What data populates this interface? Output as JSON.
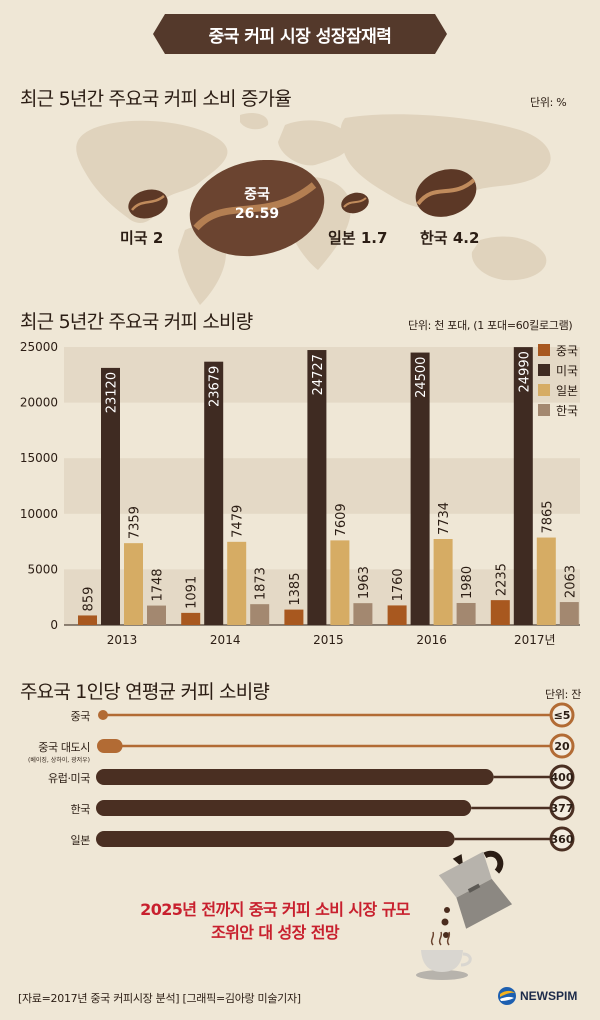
{
  "header": {
    "title": "중국 커피 시장 성장잠재력"
  },
  "growth": {
    "title": "최근 5년간 주요국 커피 소비 증가율",
    "unit": "단위: %",
    "items": [
      {
        "country": "미국",
        "value": "2"
      },
      {
        "country": "중국",
        "value": "26.59"
      },
      {
        "country": "일본",
        "value": "1.7"
      },
      {
        "country": "한국",
        "value": "4.2"
      }
    ]
  },
  "consumption": {
    "title": "최근 5년간 주요국 커피 소비량",
    "unit": "단위: 천 포대, (1 포대=60킬로그램)"
  },
  "chart_data": [
    {
      "type": "bar",
      "title": "최근 5년간 주요국 커피 소비량",
      "categories": [
        "2013",
        "2014",
        "2015",
        "2016",
        "2017년"
      ],
      "series": [
        {
          "name": "중국",
          "values": [
            859,
            1091,
            1385,
            1760,
            2235
          ],
          "color": "#a8581f"
        },
        {
          "name": "미국",
          "values": [
            23120,
            23679,
            24727,
            24500,
            24990
          ],
          "color": "#3f2b22"
        },
        {
          "name": "일본",
          "values": [
            7359,
            7479,
            7609,
            7734,
            7865
          ],
          "color": "#d6ac64"
        },
        {
          "name": "한국",
          "values": [
            1748,
            1873,
            1963,
            1980,
            2063
          ],
          "color": "#a38870"
        }
      ],
      "ylim": [
        0,
        25000
      ],
      "yticks": [
        0,
        5000,
        10000,
        15000,
        20000,
        25000
      ],
      "legend": "top-right",
      "grid": "alternating bands"
    },
    {
      "type": "bar",
      "orientation": "horizontal",
      "title": "주요국 1인당 연평균 커피 소비량",
      "unit": "단위: 잔",
      "categories": [
        "중국",
        "중국 대도시",
        "유럽·미국",
        "한국",
        "일본"
      ],
      "category_notes": [
        "",
        "(베이징, 상하이, 광저우)",
        "",
        "",
        ""
      ],
      "values": [
        5,
        20,
        400,
        377,
        360
      ],
      "value_labels": [
        "≤5",
        "20",
        "400",
        "377",
        "360"
      ],
      "xlim": [
        0,
        470
      ]
    }
  ],
  "percap": {
    "title": "주요국 1인당 연평균 커피 소비량",
    "unit": "단위: 잔"
  },
  "headline": {
    "line1": "2025년 전까지 중국 커피 소비 시장 규모",
    "line2": "조위안 대 성장 전망"
  },
  "footer": {
    "source": "[자료=2017년 중국 커피시장 분석] [그래픽=김아랑 미술기자]",
    "brand": "NEWSPIM"
  }
}
